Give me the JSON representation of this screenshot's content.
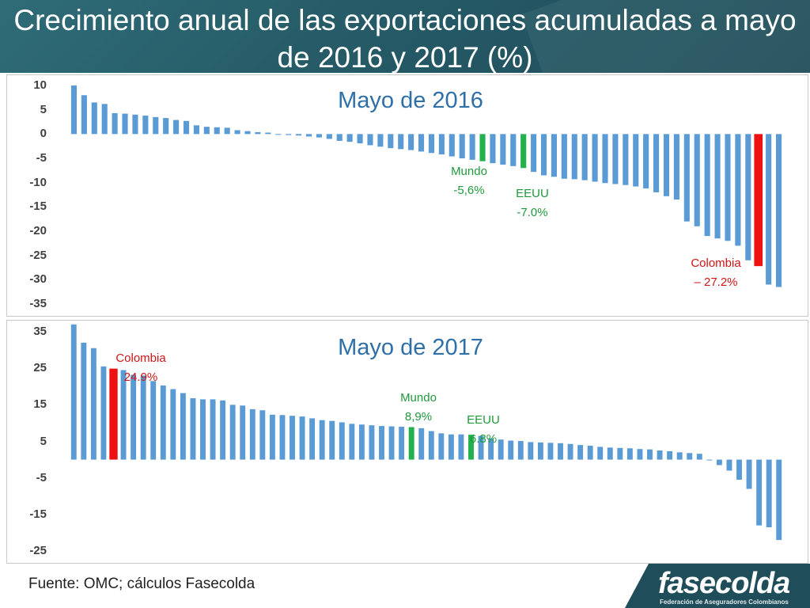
{
  "title": "Crecimiento anual de las exportaciones acumuladas a mayo de 2016 y 2017 (%)",
  "footer": {
    "source": "Fuente: OMC; cálculos Fasecolda"
  },
  "logo": {
    "name": "fasecolda",
    "tagline": "Federación de Aseguradores Colombianos"
  },
  "colors": {
    "bar": "#5b9bd5",
    "highlight_green": "#22b14c",
    "highlight_red": "#ee1111",
    "header": "#255a66",
    "subtitle": "#2e6fa8"
  },
  "chart_data": [
    {
      "type": "bar",
      "title": "Mayo de 2016",
      "ylim": [
        -35,
        10
      ],
      "yticks": [
        "10",
        "5",
        "0",
        "-5",
        "-10",
        "-15",
        "-20",
        "-25",
        "-30",
        "-35"
      ],
      "values": [
        10,
        8,
        6.5,
        6.2,
        4.3,
        4.2,
        4,
        3.8,
        3.5,
        3.3,
        2.9,
        2.7,
        1.8,
        1.5,
        1.4,
        1.3,
        0.8,
        0.6,
        0.4,
        0.3,
        0,
        -0.2,
        -0.3,
        -0.5,
        -0.7,
        -1,
        -1.4,
        -1.6,
        -1.9,
        -2.3,
        -2.6,
        -2.9,
        -3.1,
        -3.3,
        -3.6,
        -3.9,
        -4.2,
        -4.6,
        -5,
        -5.3,
        -5.6,
        -6,
        -6.3,
        -6.6,
        -7,
        -7.8,
        -8.5,
        -8.8,
        -9.2,
        -9.3,
        -9.5,
        -9.8,
        -10.1,
        -10.3,
        -10.5,
        -10.8,
        -11.2,
        -12,
        -12.8,
        -13.5,
        -18,
        -19,
        -21,
        -21.5,
        -22,
        -23,
        -26,
        -27.2,
        -31,
        -31.5
      ],
      "highlights": [
        {
          "index": 40,
          "color": "green",
          "label": "Mundo",
          "value_label": "-5,6%"
        },
        {
          "index": 44,
          "color": "green",
          "label": "EEUU",
          "value_label": "-7.0%"
        },
        {
          "index": 67,
          "color": "red",
          "label": "Colombia",
          "value_label": "– 27.2%"
        }
      ]
    },
    {
      "type": "bar",
      "title": "Mayo de 2017",
      "ylim": [
        -25,
        35
      ],
      "yticks": [
        "35",
        "25",
        "15",
        "5",
        "-5",
        "-15",
        "-25"
      ],
      "values": [
        37,
        32,
        30.5,
        25.5,
        24.9,
        24.5,
        23.2,
        23,
        21.5,
        20.3,
        19.3,
        18.2,
        16.8,
        16.5,
        16.5,
        16.2,
        15,
        14.8,
        13.8,
        13.5,
        12.3,
        12.2,
        12,
        11.8,
        11.3,
        10.8,
        10.6,
        10.2,
        9.8,
        9.6,
        9.4,
        9.2,
        9.1,
        9,
        8.9,
        8.6,
        7.8,
        7.2,
        6.9,
        6.9,
        6.8,
        6.5,
        5.8,
        5.5,
        5.2,
        5.1,
        4.8,
        4.7,
        4.6,
        4.5,
        4.3,
        4,
        3.8,
        3.5,
        3.3,
        3.2,
        3.1,
        2.9,
        2.8,
        2.5,
        2.3,
        2,
        1.8,
        1.6,
        0,
        -1.5,
        -3,
        -5.5,
        -8,
        -18,
        -18.5,
        -22
      ],
      "highlights": [
        {
          "index": 4,
          "color": "red",
          "label": "Colombia",
          "value_label": "24.9%"
        },
        {
          "index": 34,
          "color": "green",
          "label": "Mundo",
          "value_label": "8,9%"
        },
        {
          "index": 40,
          "color": "green",
          "label": "EEUU",
          "value_label": "6.8%"
        }
      ]
    }
  ]
}
